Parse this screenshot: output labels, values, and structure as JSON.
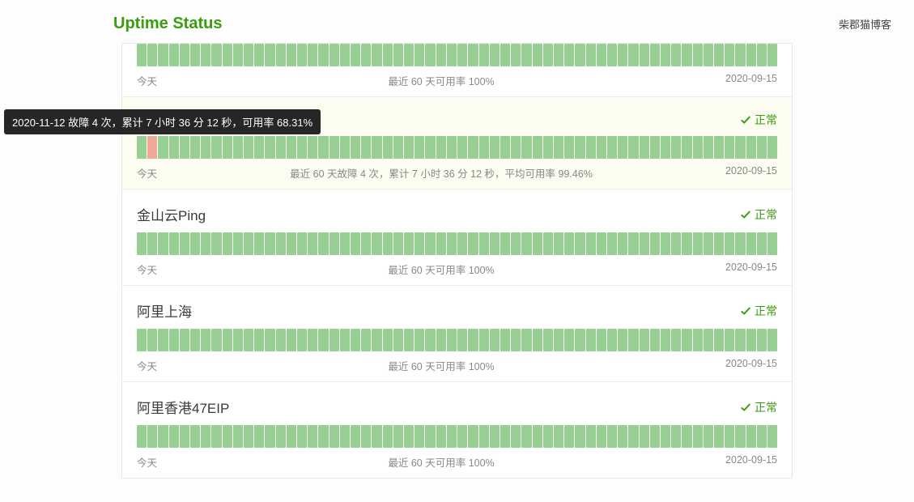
{
  "header": {
    "brand": "Uptime Status",
    "nav_link": "柴郡猫博客"
  },
  "tooltip": {
    "text": "2020-11-12 故障 4 次，累计 7 小时 36 分 12 秒，可用率 68.31%",
    "bg": "#262626",
    "color": "#ffffff"
  },
  "colors": {
    "ok": "#98cf92",
    "fail": "#f2a896",
    "brand": "#389e0d",
    "highlight_bg": "#fdfcf0"
  },
  "days_count": 60,
  "foot_labels": {
    "left": "今天",
    "right": "2020-09-15"
  },
  "status_ok_label": "正常",
  "services": [
    {
      "name": "",
      "show_head": false,
      "highlight": false,
      "foot_center": "最近 60 天可用率 100%",
      "fail_indices": []
    },
    {
      "name": "",
      "show_head": true,
      "highlight": true,
      "foot_center": "最近 60 天故障 4 次，累计 7 小时 36 分 12 秒，平均可用率 99.46%",
      "fail_indices": [
        1
      ]
    },
    {
      "name": "金山云Ping",
      "show_head": true,
      "highlight": false,
      "foot_center": "最近 60 天可用率 100%",
      "fail_indices": []
    },
    {
      "name": "阿里上海",
      "show_head": true,
      "highlight": false,
      "foot_center": "最近 60 天可用率 100%",
      "fail_indices": []
    },
    {
      "name": "阿里香港47EIP",
      "show_head": true,
      "highlight": false,
      "foot_center": "最近 60 天可用率 100%",
      "fail_indices": []
    }
  ]
}
